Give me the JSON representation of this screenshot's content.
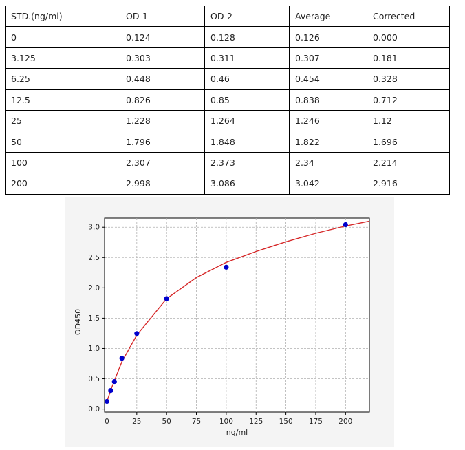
{
  "table": {
    "headers": [
      "STD.(ng/ml)",
      "OD-1",
      "OD-2",
      "Average",
      "Corrected"
    ],
    "rows": [
      [
        "0",
        "0.124",
        "0.128",
        "0.126",
        "0.000"
      ],
      [
        "3.125",
        "0.303",
        "0.311",
        "0.307",
        "0.181"
      ],
      [
        "6.25",
        "0.448",
        "0.46",
        "0.454",
        "0.328"
      ],
      [
        "12.5",
        "0.826",
        "0.85",
        "0.838",
        "0.712"
      ],
      [
        "25",
        "1.228",
        "1.264",
        "1.246",
        "1.12"
      ],
      [
        "50",
        "1.796",
        "1.848",
        "1.822",
        "1.696"
      ],
      [
        "100",
        "2.307",
        "2.373",
        "2.34",
        "2.214"
      ],
      [
        "200",
        "2.998",
        "3.086",
        "3.042",
        "2.916"
      ]
    ]
  },
  "chart_data": {
    "type": "scatter",
    "title": "",
    "xlabel": "ng/ml",
    "ylabel": "OD450",
    "xlim": [
      -2,
      220
    ],
    "ylim": [
      -0.05,
      3.15
    ],
    "xticks": [
      0,
      25,
      50,
      75,
      100,
      125,
      150,
      175,
      200
    ],
    "yticks": [
      0.0,
      0.5,
      1.0,
      1.5,
      2.0,
      2.5,
      3.0
    ],
    "yticks_labels": [
      "0.0",
      "0.5",
      "1.0",
      "1.5",
      "2.0",
      "2.5",
      "3.0"
    ],
    "grid": true,
    "series": [
      {
        "kind": "points",
        "color": "#0000cc",
        "x": [
          0,
          3.125,
          6.25,
          12.5,
          25,
          50,
          100,
          200
        ],
        "y": [
          0.126,
          0.307,
          0.454,
          0.838,
          1.246,
          1.822,
          2.34,
          3.042
        ]
      },
      {
        "kind": "fit-curve",
        "color": "#d62728",
        "x": [
          0,
          3.125,
          6.25,
          12.5,
          25,
          50,
          75,
          100,
          125,
          150,
          175,
          200,
          220
        ],
        "y": [
          0.126,
          0.31,
          0.47,
          0.78,
          1.22,
          1.82,
          2.17,
          2.42,
          2.6,
          2.76,
          2.9,
          3.02,
          3.1
        ]
      }
    ]
  }
}
